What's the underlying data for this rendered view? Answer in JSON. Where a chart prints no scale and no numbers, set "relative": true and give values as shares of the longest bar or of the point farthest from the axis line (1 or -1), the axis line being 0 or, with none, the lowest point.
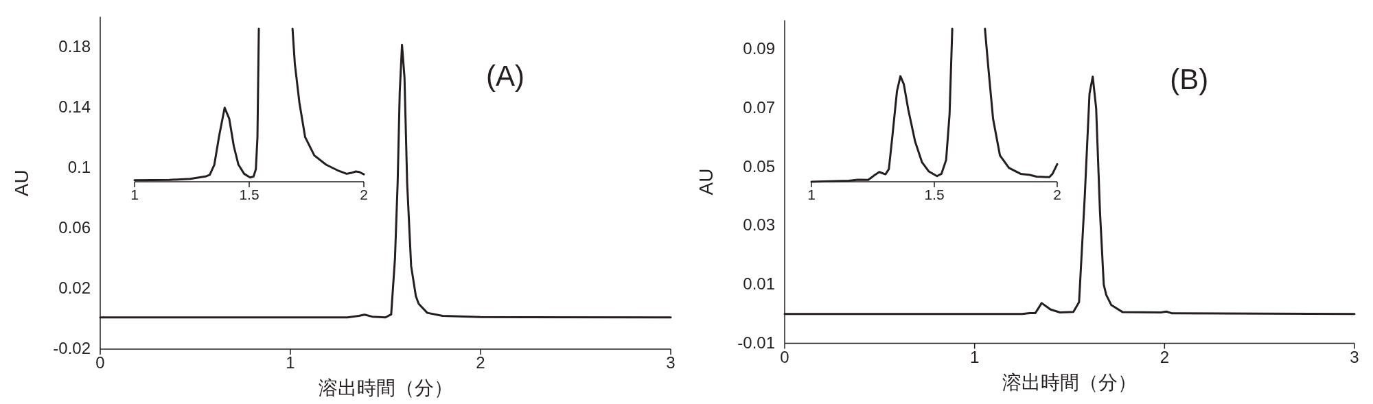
{
  "chart_data": [
    {
      "type": "line",
      "xlabel": "溶出時間（分）",
      "ylabel": "AU",
      "annotations": [
        "(A)"
      ],
      "xlim": [
        0,
        3
      ],
      "xticks": [
        0,
        1,
        2,
        3
      ],
      "ylim": [
        -0.02,
        0.2
      ],
      "yticks": [
        -0.02,
        0.02,
        0.06,
        0.1,
        0.14,
        0.18
      ],
      "series": [
        {
          "color": "#231f20",
          "x": [
            0,
            1.3,
            1.36,
            1.39,
            1.43,
            1.5,
            1.53,
            1.55,
            1.564,
            1.575,
            1.587,
            1.6,
            1.614,
            1.635,
            1.66,
            1.675,
            1.72,
            1.8,
            2.0,
            3.0
          ],
          "values": [
            0.001,
            0.001,
            0.002,
            0.0028,
            0.0015,
            0.001,
            0.003,
            0.04,
            0.09,
            0.15,
            0.1815,
            0.16,
            0.09,
            0.035,
            0.015,
            0.01,
            0.004,
            0.002,
            0.0012,
            0.001
          ]
        }
      ]
    },
    {
      "type": "line",
      "relative": true,
      "tick_labels": "x",
      "xlim": [
        1,
        2
      ],
      "xticks": [
        1,
        1.5,
        2
      ],
      "series": [
        {
          "color": "#231f20",
          "x": [
            1.0,
            1.152,
            1.243,
            1.313,
            1.328,
            1.348,
            1.368,
            1.393,
            1.413,
            1.433,
            1.453,
            1.478,
            1.504,
            1.519,
            1.529,
            1.536,
            1.542
          ],
          "values": [
            0.01,
            0.012,
            0.019,
            0.036,
            0.045,
            0.112,
            0.292,
            0.484,
            0.412,
            0.232,
            0.112,
            0.052,
            0.028,
            0.034,
            0.082,
            0.29,
            1.0
          ]
        },
        {
          "color": "#231f20",
          "x": [
            1.689,
            1.699,
            1.719,
            1.744,
            1.784,
            1.835,
            1.885,
            1.925,
            1.945,
            1.965,
            1.98,
            2.0
          ],
          "values": [
            1.0,
            0.772,
            0.517,
            0.292,
            0.172,
            0.112,
            0.075,
            0.052,
            0.058,
            0.067,
            0.064,
            0.049
          ]
        }
      ]
    },
    {
      "type": "line",
      "xlabel": "溶出時間（分）",
      "ylabel": "AU",
      "annotations": [
        "(B)"
      ],
      "xlim": [
        0,
        3
      ],
      "xticks": [
        0,
        1,
        2,
        3
      ],
      "ylim": [
        -0.01,
        0.1
      ],
      "yticks": [
        -0.01,
        0.01,
        0.03,
        0.05,
        0.07,
        0.09
      ],
      "series": [
        {
          "color": "#231f20",
          "x": [
            0,
            1.25,
            1.29,
            1.32,
            1.353,
            1.4,
            1.45,
            1.52,
            1.55,
            1.58,
            1.605,
            1.622,
            1.64,
            1.66,
            1.68,
            1.693,
            1.72,
            1.78,
            1.98,
            2.01,
            2.04,
            3.0
          ],
          "values": [
            0,
            0,
            0.0003,
            0.0003,
            0.0037,
            0.0015,
            0.0005,
            0.0007,
            0.004,
            0.04,
            0.075,
            0.0808,
            0.07,
            0.035,
            0.01,
            0.0065,
            0.003,
            0.0006,
            0.0005,
            0.0008,
            0.0002,
            0
          ]
        }
      ]
    },
    {
      "type": "line",
      "relative": true,
      "tick_labels": "x",
      "xlim": [
        1,
        2
      ],
      "xticks": [
        1,
        1.5,
        2
      ],
      "series": [
        {
          "color": "#231f20",
          "x": [
            1.0,
            1.152,
            1.189,
            1.231,
            1.254,
            1.276,
            1.301,
            1.315,
            1.329,
            1.348,
            1.362,
            1.376,
            1.394,
            1.422,
            1.45,
            1.478,
            1.511,
            1.529,
            1.548,
            1.562,
            1.573
          ],
          "values": [
            0.0,
            0.007,
            0.013,
            0.012,
            0.04,
            0.064,
            0.049,
            0.082,
            0.292,
            0.592,
            0.69,
            0.637,
            0.472,
            0.262,
            0.127,
            0.067,
            0.037,
            0.052,
            0.142,
            0.442,
            1.0
          ]
        },
        {
          "color": "#231f20",
          "x": [
            1.706,
            1.72,
            1.739,
            1.767,
            1.804,
            1.851,
            1.888,
            1.916,
            1.968,
            1.981,
            2.0
          ],
          "values": [
            1.0,
            0.742,
            0.412,
            0.172,
            0.09,
            0.052,
            0.045,
            0.034,
            0.03,
            0.052,
            0.115
          ]
        }
      ]
    }
  ]
}
